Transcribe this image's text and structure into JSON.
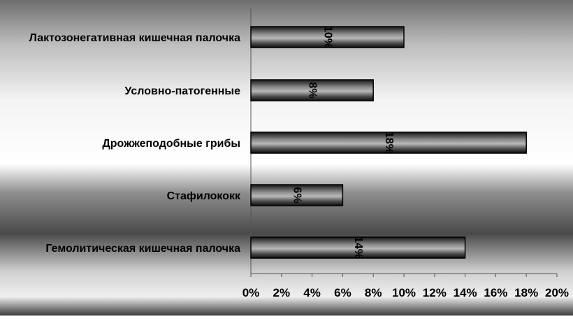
{
  "chart_data": {
    "type": "bar",
    "orientation": "horizontal",
    "categories": [
      "Лактозонегативная кишечная палочка",
      "Условно-патогенные",
      "Дрожжеподобные грибы",
      "Стафилококк",
      "Гемолитическая кишечная палочка"
    ],
    "values": [
      10,
      8,
      18,
      6,
      14
    ],
    "data_labels": [
      "10%",
      "8%",
      "18%",
      "6%",
      "14%"
    ],
    "xlim": [
      0,
      20
    ],
    "x_ticks": [
      "0%",
      "2%",
      "4%",
      "6%",
      "8%",
      "10%",
      "12%",
      "14%",
      "16%",
      "18%",
      "20%"
    ],
    "title": "",
    "xlabel": "",
    "ylabel": "",
    "grid": false,
    "legend": "none"
  },
  "colors": {
    "bar_fill_dark": "#1a1a1a",
    "bar_fill_light": "#b8b8b8",
    "background_light": "#ffffff",
    "background_dark": "#3c3c3c",
    "text": "#000000"
  }
}
